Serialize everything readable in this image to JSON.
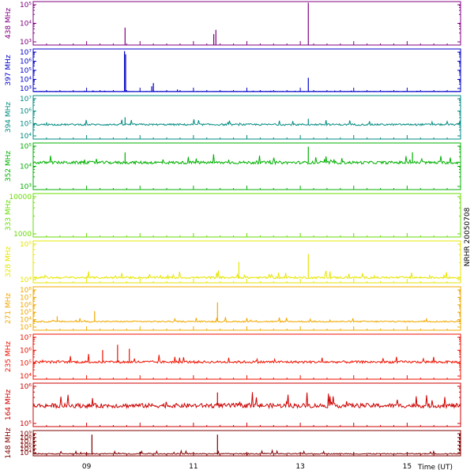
{
  "chart_data": {
    "type": "line",
    "title": "NRHR 20050708",
    "xlabel": "Time (UT)",
    "x_ticks": [
      "09",
      "11",
      "13",
      "15"
    ],
    "x_tick_hours": [
      9,
      11,
      13,
      15
    ],
    "x_range_hours": [
      8.0,
      16.0
    ],
    "scale": "log",
    "panels": [
      {
        "label": "438 MHz",
        "color": "#800080",
        "yticks": [
          "10⁵",
          "10⁴",
          "10³"
        ],
        "ylog": [
          3,
          5
        ],
        "baseline_log": 3.0,
        "spikes": [
          {
            "t": 9.72,
            "log": 3.8
          },
          {
            "t": 11.38,
            "log": 3.5
          },
          {
            "t": 11.42,
            "log": 3.7
          },
          {
            "t": 13.15,
            "log": 4.95
          }
        ],
        "noise": 0.0
      },
      {
        "label": "397 MHz",
        "color": "#0000cc",
        "yticks": [
          "10⁷",
          "10⁶",
          "10⁵",
          "10⁴",
          "10³"
        ],
        "ylog": [
          3,
          7
        ],
        "baseline_log": 3.02,
        "spikes": [
          {
            "t": 9.71,
            "log": 6.8
          },
          {
            "t": 9.73,
            "log": 6.5
          },
          {
            "t": 10.22,
            "log": 3.5
          },
          {
            "t": 10.25,
            "log": 3.8
          },
          {
            "t": 10.7,
            "log": 3.2
          },
          {
            "t": 13.15,
            "log": 4.3
          }
        ],
        "noise": 0.02
      },
      {
        "label": "394 MHz",
        "color": "#008b80",
        "yticks": [
          "10⁷",
          "10⁶",
          "10⁵",
          "10⁴"
        ],
        "ylog": [
          4,
          7
        ],
        "baseline_log": 5.0,
        "spikes": [
          {
            "t": 9.72,
            "log": 5.5
          },
          {
            "t": 13.15,
            "log": 5.4
          }
        ],
        "noise": 0.12
      },
      {
        "label": "352 MHz",
        "color": "#00b000",
        "yticks": [
          "10⁵",
          "10⁴",
          "10³"
        ],
        "ylog": [
          2.5,
          5
        ],
        "baseline_log": 3.95,
        "spikes": [
          {
            "t": 9.72,
            "log": 4.5
          },
          {
            "t": 13.15,
            "log": 4.8
          },
          {
            "t": 15.1,
            "log": 4.5
          }
        ],
        "noise": 0.15
      },
      {
        "label": "333 MHz",
        "color": "#66dd00",
        "yticks": [
          "10000",
          "1000"
        ],
        "ylog": [
          2.3,
          4
        ],
        "baseline_log": null,
        "spikes": [],
        "noise": 0.0
      },
      {
        "label": "328 MHz",
        "color": "#e6e600",
        "yticks": [
          "10⁵",
          "10⁴"
        ],
        "ylog": [
          3.8,
          5.4
        ],
        "baseline_log": 4.0,
        "spikes": [
          {
            "t": 11.85,
            "log": 4.6
          },
          {
            "t": 13.15,
            "log": 4.9
          }
        ],
        "noise": 0.08
      },
      {
        "label": "271 MHz",
        "color": "#f0a800",
        "yticks": [
          "10⁸",
          "10⁷",
          "10⁶",
          "10⁵",
          "10⁴",
          "10³"
        ],
        "ylog": [
          3,
          8
        ],
        "baseline_log": 4.0,
        "spikes": [
          {
            "t": 8.45,
            "log": 4.6
          },
          {
            "t": 9.15,
            "log": 5.2
          },
          {
            "t": 11.45,
            "log": 6.2
          }
        ],
        "noise": 0.15
      },
      {
        "label": "235 MHz",
        "color": "#ee1100",
        "yticks": [
          "10⁷",
          "10⁶",
          "10⁵",
          "10⁴"
        ],
        "ylog": [
          3.6,
          7
        ],
        "baseline_log": 4.9,
        "spikes": [
          {
            "t": 9.3,
            "log": 5.8
          },
          {
            "t": 9.58,
            "log": 6.2
          },
          {
            "t": 9.8,
            "log": 5.9
          }
        ],
        "noise": 0.18
      },
      {
        "label": "164 MHz",
        "color": "#cc0000",
        "yticks": [
          "10⁶",
          "10⁵"
        ],
        "ylog": [
          4,
          6.8
        ],
        "baseline_log": 5.35,
        "spikes": [
          {
            "t": 11.45,
            "log": 6.2
          }
        ],
        "noise": 0.28
      },
      {
        "label": "148 MHz",
        "color": "#800000",
        "yticks": [
          "10⁹",
          "10⁸",
          "10⁷",
          "10⁶",
          "10⁵",
          "10⁴"
        ],
        "ylog": [
          3.6,
          9.2
        ],
        "baseline_log": 4.05,
        "spikes": [
          {
            "t": 9.1,
            "log": 8.3
          },
          {
            "t": 11.45,
            "log": 8.3
          }
        ],
        "noise": 0.22
      }
    ]
  }
}
